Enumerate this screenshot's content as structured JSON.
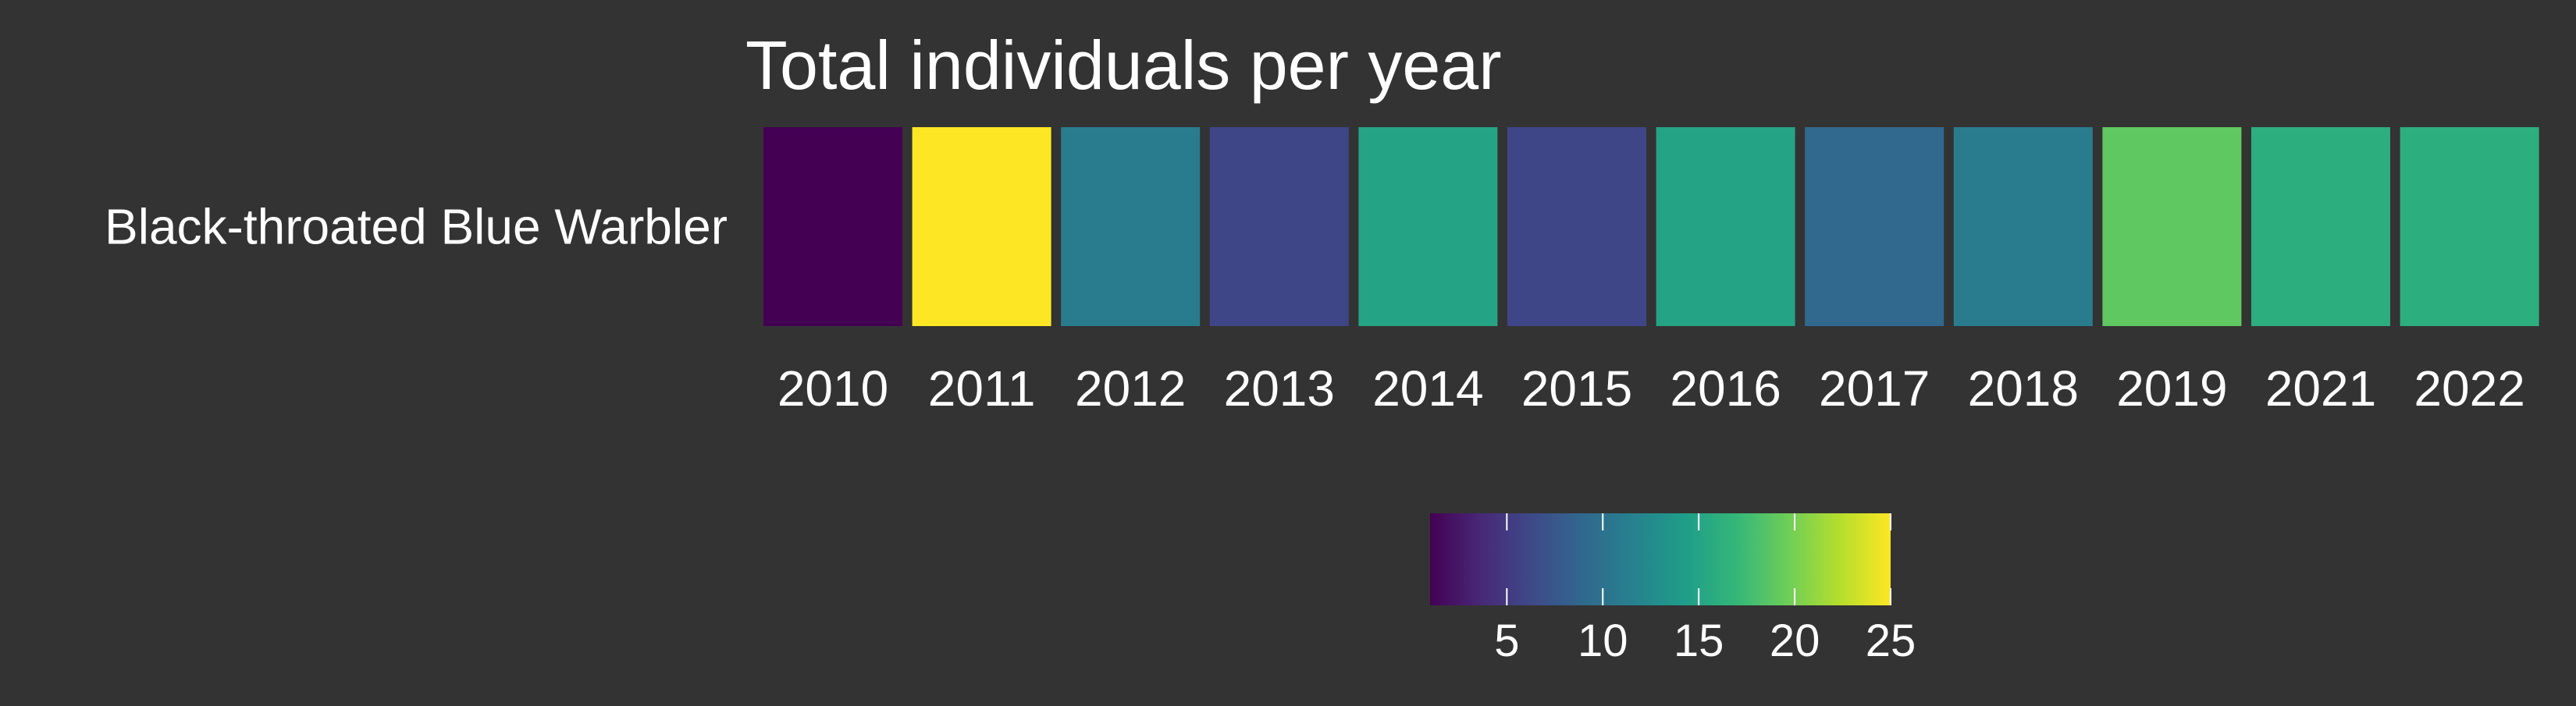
{
  "chart_data": {
    "type": "heatmap",
    "title": "Total individuals per year",
    "xlabel": "",
    "ylabel": "",
    "rows": [
      "Black-throated Blue Warbler"
    ],
    "columns": [
      "2010",
      "2011",
      "2012",
      "2013",
      "2014",
      "2015",
      "2016",
      "2017",
      "2018",
      "2019",
      "2021",
      "2022"
    ],
    "values": [
      [
        1,
        25,
        11,
        6,
        15,
        6,
        15,
        9,
        11,
        19,
        16,
        16
      ]
    ],
    "colormap": "viridis",
    "colorbar": {
      "range": [
        1,
        25
      ],
      "ticks": [
        5,
        10,
        15,
        20,
        25
      ],
      "tick_labels": [
        "5",
        "10",
        "15",
        "20",
        "25"
      ],
      "placement": "bottom"
    },
    "grid": false
  },
  "colors": {
    "background": "#333333",
    "text": "#ffffff",
    "viridis_stops": [
      "#440154",
      "#482878",
      "#3e4a89",
      "#31688e",
      "#26828e",
      "#1f9e89",
      "#35b779",
      "#6ece58",
      "#b5de2b",
      "#fde725"
    ]
  }
}
